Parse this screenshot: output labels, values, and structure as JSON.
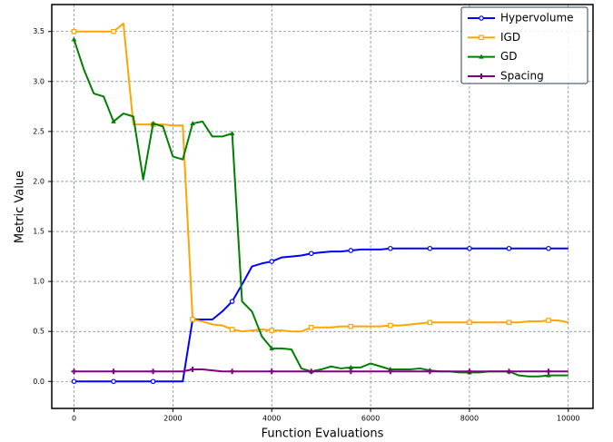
{
  "chart_data": {
    "type": "line",
    "xlabel": "Function Evaluations",
    "ylabel": "Metric Value",
    "x": [
      0,
      200,
      400,
      600,
      800,
      1000,
      1200,
      1400,
      1600,
      1800,
      2000,
      2200,
      2400,
      2600,
      2800,
      3000,
      3200,
      3400,
      3600,
      3800,
      4000,
      4200,
      4400,
      4600,
      4800,
      5000,
      5200,
      5400,
      5600,
      5800,
      6000,
      6200,
      6400,
      6600,
      6800,
      7000,
      7200,
      7400,
      7600,
      7800,
      8000,
      8200,
      8400,
      8600,
      8800,
      9000,
      9200,
      9400,
      9600,
      9800,
      10000
    ],
    "series": [
      {
        "name": "Hypervolume",
        "color": "#0000ff",
        "marker": "o",
        "values": [
          0,
          0,
          0,
          0,
          0,
          0,
          0,
          0,
          0,
          0,
          0,
          0,
          0.62,
          0.62,
          0.62,
          0.7,
          0.8,
          0.97,
          1.15,
          1.18,
          1.2,
          1.24,
          1.25,
          1.26,
          1.28,
          1.29,
          1.3,
          1.3,
          1.31,
          1.32,
          1.32,
          1.32,
          1.33,
          1.33,
          1.33,
          1.33,
          1.33,
          1.33,
          1.33,
          1.33,
          1.33,
          1.33,
          1.33,
          1.33,
          1.33,
          1.33,
          1.33,
          1.33,
          1.33,
          1.33,
          1.33
        ]
      },
      {
        "name": "IGD",
        "color": "#ffa500",
        "marker": "s",
        "values": [
          3.5,
          3.5,
          3.5,
          3.5,
          3.5,
          3.58,
          2.57,
          2.57,
          2.57,
          2.57,
          2.56,
          2.56,
          0.62,
          0.6,
          0.57,
          0.56,
          0.52,
          0.5,
          0.51,
          0.52,
          0.51,
          0.51,
          0.5,
          0.5,
          0.54,
          0.54,
          0.54,
          0.55,
          0.55,
          0.55,
          0.55,
          0.55,
          0.56,
          0.56,
          0.57,
          0.58,
          0.59,
          0.59,
          0.59,
          0.59,
          0.59,
          0.59,
          0.59,
          0.59,
          0.59,
          0.59,
          0.6,
          0.6,
          0.61,
          0.61,
          0.59
        ]
      },
      {
        "name": "GD",
        "color": "#008000",
        "marker": "^",
        "values": [
          3.42,
          3.12,
          2.88,
          2.85,
          2.6,
          2.68,
          2.65,
          2.02,
          2.58,
          2.55,
          2.25,
          2.22,
          2.58,
          2.6,
          2.45,
          2.45,
          2.48,
          0.8,
          0.7,
          0.45,
          0.33,
          0.33,
          0.32,
          0.13,
          0.1,
          0.12,
          0.15,
          0.13,
          0.14,
          0.14,
          0.18,
          0.15,
          0.12,
          0.12,
          0.12,
          0.13,
          0.11,
          0.1,
          0.1,
          0.09,
          0.09,
          0.09,
          0.1,
          0.1,
          0.1,
          0.06,
          0.05,
          0.05,
          0.06,
          0.06,
          0.06
        ]
      },
      {
        "name": "Spacing",
        "color": "#800080",
        "marker": "P",
        "values": [
          0.1,
          0.1,
          0.1,
          0.1,
          0.1,
          0.1,
          0.1,
          0.1,
          0.1,
          0.1,
          0.1,
          0.1,
          0.12,
          0.12,
          0.11,
          0.1,
          0.1,
          0.1,
          0.1,
          0.1,
          0.1,
          0.1,
          0.1,
          0.1,
          0.1,
          0.1,
          0.1,
          0.1,
          0.1,
          0.1,
          0.1,
          0.1,
          0.1,
          0.1,
          0.1,
          0.1,
          0.1,
          0.1,
          0.1,
          0.1,
          0.1,
          0.1,
          0.1,
          0.1,
          0.1,
          0.1,
          0.1,
          0.1,
          0.1,
          0.1,
          0.1
        ]
      }
    ],
    "xlim": [
      -450,
      10500
    ],
    "ylim": [
      -0.27,
      3.77
    ],
    "xticks": [
      0,
      2000,
      4000,
      6000,
      8000,
      10000
    ],
    "yticks": [
      {
        "value": 0,
        "label": "0.0"
      },
      0.5,
      {
        "value": 1,
        "label": "1.0"
      },
      1.5,
      {
        "value": 2,
        "label": "2.0"
      },
      2.5,
      {
        "value": 3,
        "label": "3.0"
      },
      3.5
    ],
    "grid": true,
    "legend": "upper right"
  }
}
